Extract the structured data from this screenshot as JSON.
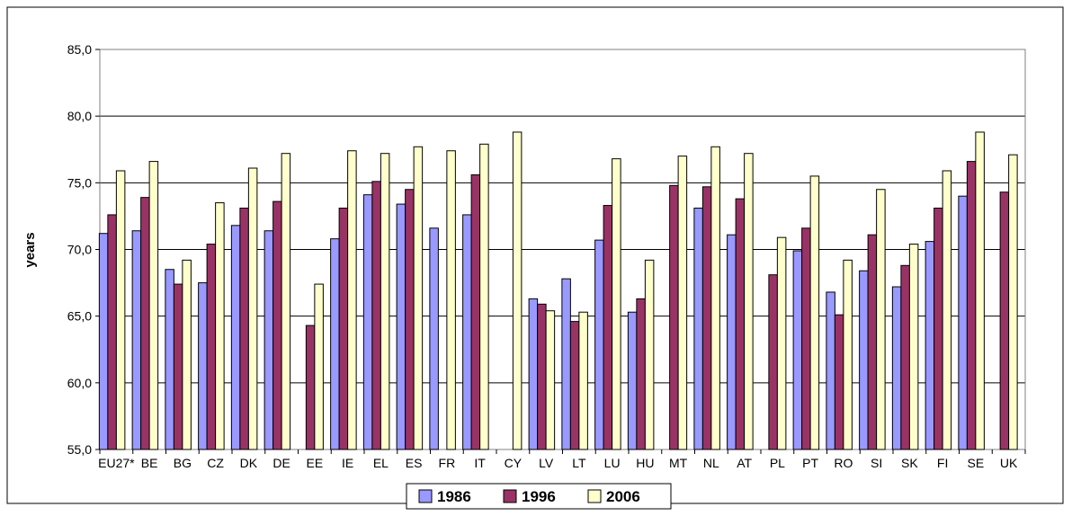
{
  "chart_data": {
    "type": "bar",
    "title": "",
    "xlabel": "",
    "ylabel": "years",
    "ylim": [
      55,
      85
    ],
    "yticks": [
      "55,0",
      "60,0",
      "65,0",
      "70,0",
      "75,0",
      "80,0",
      "85,0"
    ],
    "ytick_values": [
      55,
      60,
      65,
      70,
      75,
      80,
      85
    ],
    "grid": true,
    "legend_position": "bottom",
    "categories": [
      "EU27*",
      "BE",
      "BG",
      "CZ",
      "DK",
      "DE",
      "EE",
      "IE",
      "EL",
      "ES",
      "FR",
      "IT",
      "CY",
      "LV",
      "LT",
      "LU",
      "HU",
      "MT",
      "NL",
      "AT",
      "PL",
      "PT",
      "RO",
      "SI",
      "SK",
      "FI",
      "SE",
      "UK"
    ],
    "series": [
      {
        "name": "1986",
        "color": "#9999ff",
        "values": [
          71.2,
          71.4,
          68.5,
          67.5,
          71.8,
          71.4,
          null,
          70.8,
          74.1,
          73.4,
          71.6,
          72.6,
          null,
          66.3,
          67.8,
          70.7,
          65.3,
          null,
          73.1,
          71.1,
          null,
          69.9,
          66.8,
          68.4,
          67.2,
          70.6,
          74.0,
          null
        ]
      },
      {
        "name": "1996",
        "color": "#993366",
        "values": [
          72.6,
          73.9,
          67.4,
          70.4,
          73.1,
          73.6,
          64.3,
          73.1,
          75.1,
          74.5,
          null,
          75.6,
          null,
          65.9,
          64.6,
          73.3,
          66.3,
          74.8,
          74.7,
          73.8,
          68.1,
          71.6,
          65.1,
          71.1,
          68.8,
          73.1,
          76.6,
          74.3
        ]
      },
      {
        "name": "2006",
        "color": "#ffffcc",
        "values": [
          75.9,
          76.6,
          69.2,
          73.5,
          76.1,
          77.2,
          67.4,
          77.4,
          77.2,
          77.7,
          77.4,
          77.9,
          78.8,
          65.4,
          65.3,
          76.8,
          69.2,
          77.0,
          77.7,
          77.2,
          70.9,
          75.5,
          69.2,
          74.5,
          70.4,
          75.9,
          78.8,
          77.1
        ]
      }
    ]
  }
}
